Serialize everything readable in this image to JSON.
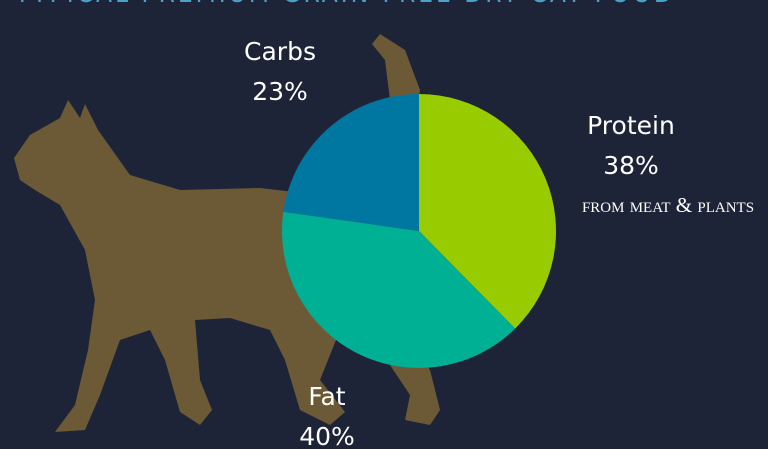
{
  "chart_data": {
    "type": "pie",
    "title": "Typical Premium Grain-Free Dry Cat Food",
    "categories": [
      "Protein",
      "Fat",
      "Carbs"
    ],
    "values": [
      38,
      40,
      23
    ],
    "value_labels": [
      "38%",
      "40%",
      "23%"
    ],
    "colors": [
      "#99cc00",
      "#00b095",
      "#0077a0"
    ],
    "annotation": "from meat & plants"
  }
}
